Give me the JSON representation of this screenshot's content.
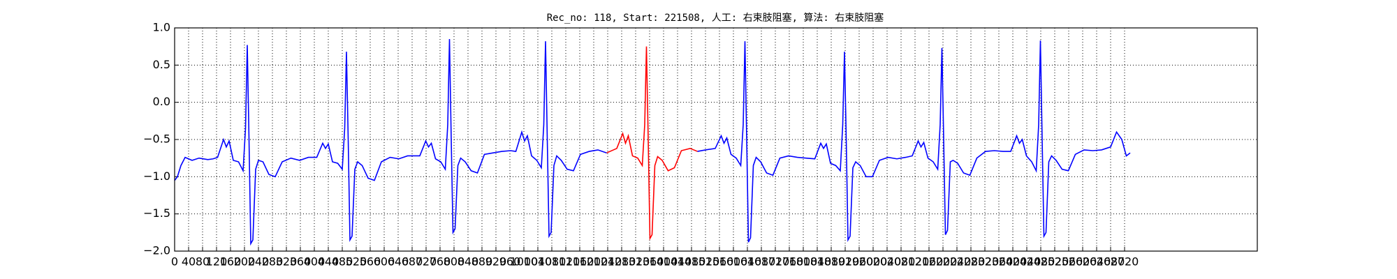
{
  "chart_data": {
    "type": "line",
    "title": "Rec_no: 118, Start: 221508, 人工: 右束肢阻塞, 算法: 右束肢阻塞",
    "xlim": [
      0,
      3100
    ],
    "ylim": [
      -2,
      1
    ],
    "xticks": [
      0,
      40,
      80,
      120,
      160,
      200,
      240,
      280,
      320,
      360,
      400,
      440,
      480,
      520,
      560,
      600,
      640,
      680,
      720,
      760,
      800,
      840,
      880,
      920,
      960,
      1000,
      1040,
      1080,
      1120,
      1160,
      1200,
      1240,
      1280,
      1320,
      1360,
      1400,
      1440,
      1480,
      1520,
      1560,
      1600,
      1640,
      1680,
      1720,
      1760,
      1800,
      1840,
      1880,
      1920,
      1960,
      2000,
      2040,
      2080,
      2120,
      2160,
      2200,
      2240,
      2280,
      2320,
      2360,
      2400,
      2440,
      2480,
      2520,
      2560,
      2600,
      2640,
      2680,
      2720
    ],
    "yticks": [
      {
        "value": -2,
        "label": "−2.0"
      },
      {
        "value": -1.5,
        "label": "−1.5"
      },
      {
        "value": -1,
        "label": "−1.0"
      },
      {
        "value": -0.5,
        "label": "−0.5"
      },
      {
        "value": 0,
        "label": "0.0"
      },
      {
        "value": 0.5,
        "label": "0.5"
      },
      {
        "value": 1,
        "label": "1.0"
      }
    ],
    "grid": true,
    "series": [
      {
        "color": "#0000ff",
        "x": [
          0,
          8,
          18,
          30,
          50,
          70,
          95,
          110,
          123,
          140,
          148,
          156,
          168,
          183,
          196,
          203,
          208,
          213,
          218,
          224,
          232,
          240,
          253,
          270,
          288,
          308,
          333,
          358,
          383,
          407,
          424,
          432,
          440,
          452,
          467,
          480,
          487,
          492,
          497,
          502,
          508,
          516,
          524,
          537,
          554,
          572,
          592,
          617,
          642,
          667,
          702,
          719,
          727,
          735,
          747,
          762,
          775,
          782,
          787,
          792,
          797,
          803,
          811,
          819,
          832,
          849,
          867,
          887,
          912,
          937,
          962,
          977,
          994,
          1002,
          1010,
          1022,
          1037,
          1050,
          1057,
          1062,
          1067,
          1072,
          1078,
          1086,
          1094,
          1107,
          1124,
          1142,
          1162,
          1187,
          1212,
          1237
        ],
        "values": [
          -1.05,
          -1.0,
          -0.85,
          -0.74,
          -0.78,
          -0.75,
          -0.77,
          -0.76,
          -0.74,
          -0.5,
          -0.6,
          -0.52,
          -0.78,
          -0.8,
          -0.92,
          -0.35,
          0.77,
          -0.5,
          -1.9,
          -1.85,
          -0.9,
          -0.78,
          -0.8,
          -0.97,
          -1.0,
          -0.8,
          -0.75,
          -0.78,
          -0.74,
          -0.74,
          -0.55,
          -0.62,
          -0.56,
          -0.8,
          -0.82,
          -0.9,
          -0.35,
          0.68,
          -0.5,
          -1.85,
          -1.8,
          -0.9,
          -0.8,
          -0.85,
          -1.02,
          -1.05,
          -0.8,
          -0.74,
          -0.76,
          -0.72,
          -0.72,
          -0.52,
          -0.6,
          -0.55,
          -0.76,
          -0.8,
          -0.9,
          -0.3,
          0.85,
          -0.5,
          -1.75,
          -1.7,
          -0.85,
          -0.75,
          -0.8,
          -0.92,
          -0.95,
          -0.7,
          -0.68,
          -0.66,
          -0.65,
          -0.66,
          -0.4,
          -0.52,
          -0.45,
          -0.72,
          -0.78,
          -0.88,
          -0.3,
          0.82,
          -0.5,
          -1.8,
          -1.75,
          -0.85,
          -0.72,
          -0.78,
          -0.9,
          -0.92,
          -0.7,
          -0.66,
          -0.64,
          -0.68
        ]
      },
      {
        "color": "#ff0000",
        "x": [
          1237,
          1266,
          1283,
          1291,
          1299,
          1311,
          1326,
          1339,
          1346,
          1351,
          1356,
          1361,
          1367,
          1375,
          1383,
          1396,
          1413,
          1431,
          1451,
          1476,
          1497
        ],
        "values": [
          -0.68,
          -0.62,
          -0.42,
          -0.55,
          -0.45,
          -0.72,
          -0.75,
          -0.85,
          -0.3,
          0.75,
          -0.5,
          -1.83,
          -1.78,
          -0.85,
          -0.73,
          -0.78,
          -0.92,
          -0.88,
          -0.65,
          -0.62,
          -0.66
        ]
      },
      {
        "color": "#0000ff",
        "x": [
          1497,
          1520,
          1548,
          1565,
          1573,
          1581,
          1593,
          1608,
          1621,
          1628,
          1633,
          1638,
          1643,
          1649,
          1657,
          1665,
          1678,
          1695,
          1713,
          1733,
          1758,
          1783,
          1808,
          1833,
          1850,
          1858,
          1866,
          1878,
          1893,
          1906,
          1913,
          1918,
          1923,
          1928,
          1934,
          1942,
          1950,
          1963,
          1980,
          1998,
          2018,
          2043,
          2068,
          2093,
          2112,
          2129,
          2137,
          2145,
          2157,
          2172,
          2185,
          2192,
          2197,
          2202,
          2207,
          2213,
          2221,
          2229,
          2242,
          2259,
          2277,
          2297,
          2322,
          2347,
          2372,
          2394,
          2411,
          2419,
          2427,
          2439,
          2454,
          2467,
          2474,
          2479,
          2484,
          2489,
          2495,
          2503,
          2511,
          2524,
          2541,
          2559,
          2579,
          2604,
          2629,
          2654,
          2680,
          2697,
          2712,
          2725,
          2736
        ],
        "values": [
          -0.66,
          -0.64,
          -0.62,
          -0.45,
          -0.55,
          -0.48,
          -0.7,
          -0.75,
          -0.85,
          -0.3,
          0.82,
          -0.5,
          -1.88,
          -1.82,
          -0.85,
          -0.74,
          -0.8,
          -0.95,
          -0.98,
          -0.75,
          -0.72,
          -0.74,
          -0.75,
          -0.76,
          -0.55,
          -0.62,
          -0.56,
          -0.82,
          -0.85,
          -0.92,
          -0.3,
          0.68,
          -0.5,
          -1.85,
          -1.8,
          -0.88,
          -0.8,
          -0.85,
          -1.0,
          -1.0,
          -0.78,
          -0.74,
          -0.76,
          -0.74,
          -0.72,
          -0.52,
          -0.6,
          -0.54,
          -0.75,
          -0.8,
          -0.9,
          -0.3,
          0.73,
          -0.5,
          -1.78,
          -1.72,
          -0.8,
          -0.78,
          -0.82,
          -0.95,
          -0.98,
          -0.75,
          -0.66,
          -0.65,
          -0.66,
          -0.66,
          -0.45,
          -0.55,
          -0.5,
          -0.72,
          -0.8,
          -0.92,
          -0.3,
          0.83,
          -0.5,
          -1.8,
          -1.75,
          -0.8,
          -0.72,
          -0.78,
          -0.9,
          -0.92,
          -0.7,
          -0.64,
          -0.65,
          -0.64,
          -0.6,
          -0.4,
          -0.5,
          -0.72,
          -0.68
        ]
      }
    ]
  }
}
